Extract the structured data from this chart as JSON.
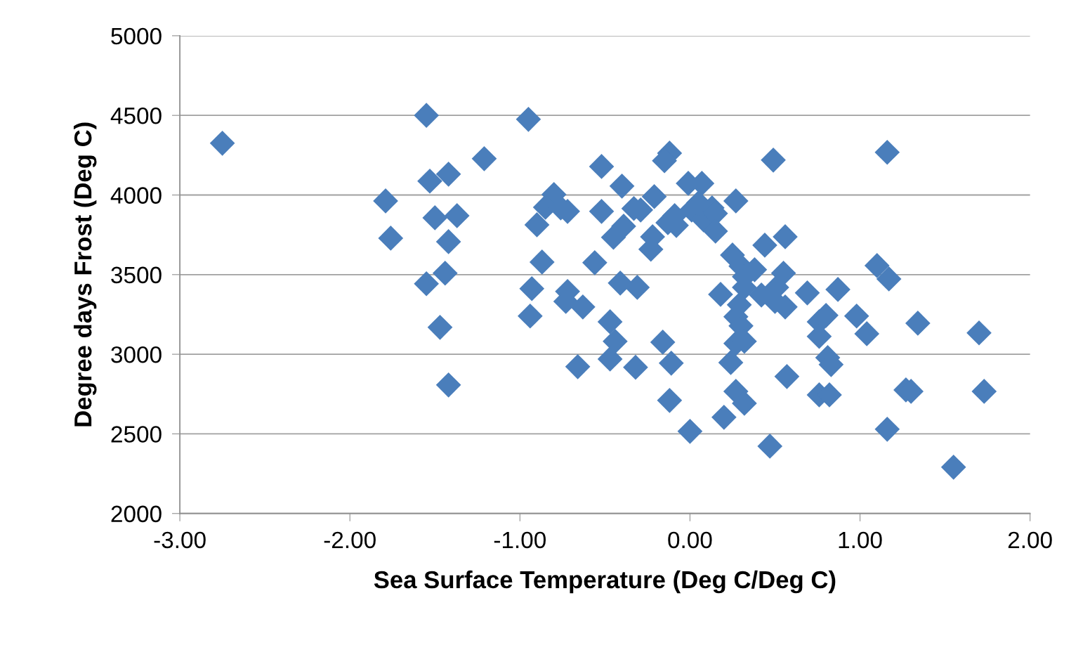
{
  "chart_data": {
    "type": "scatter",
    "xlabel": "Sea Surface Temperature (Deg C/Deg C)",
    "ylabel": "Degree days Frost (Deg C)",
    "xlim": [
      -3,
      2
    ],
    "ylim": [
      2000,
      5000
    ],
    "xticks": [
      {
        "value": -3,
        "label": "-3.00"
      },
      {
        "value": -2,
        "label": "-2.00"
      },
      {
        "value": -1,
        "label": "-1.00"
      },
      {
        "value": 0,
        "label": "0.00"
      },
      {
        "value": 1,
        "label": "1.00"
      },
      {
        "value": 2,
        "label": "2.00"
      }
    ],
    "yticks": [
      2000,
      2500,
      3000,
      3500,
      4000,
      4500,
      5000
    ],
    "grid": "y",
    "marker": "diamond",
    "legend": false,
    "series": [
      {
        "color": "#4a7ebb",
        "x": [
          -2.75,
          -1.55,
          -0.95,
          -1.21,
          -1.53,
          -1.42,
          -1.79,
          -1.76,
          -1.5,
          -1.37,
          -1.42,
          -1.44,
          -1.55,
          -1.47,
          -1.42,
          -0.93,
          -0.94,
          -0.9,
          -0.87,
          -0.8,
          -0.85,
          -0.76,
          -0.72,
          -0.72,
          -0.73,
          -0.63,
          -0.66,
          -0.52,
          -0.4,
          -0.52,
          -0.45,
          -0.39,
          -0.56,
          -0.41,
          -0.47,
          -0.44,
          -0.47,
          -0.32,
          -0.31,
          -0.33,
          -0.29,
          -0.21,
          -0.22,
          -0.23,
          -0.12,
          -0.15,
          -0.16,
          -0.11,
          -0.12,
          0.0,
          -0.01,
          0.07,
          -0.13,
          -0.08,
          -0.09,
          0.01,
          0.08,
          0.13,
          0.15,
          0.15,
          0.05,
          0.27,
          0.18,
          0.25,
          0.3,
          0.32,
          0.38,
          0.32,
          0.27,
          0.3,
          0.27,
          0.32,
          0.24,
          0.27,
          0.32,
          0.2,
          0.42,
          0.44,
          0.56,
          0.49,
          0.55,
          0.51,
          0.5,
          0.56,
          0.57,
          0.47,
          0.69,
          0.87,
          0.76,
          0.8,
          0.76,
          0.81,
          0.83,
          0.76,
          0.82,
          0.98,
          1.04,
          1.1,
          1.17,
          1.16,
          1.16,
          1.27,
          1.3,
          1.34,
          1.55,
          1.7,
          1.73,
          0.29
        ],
        "values": [
          4325,
          4500,
          4475,
          4228,
          4087,
          4131,
          3963,
          3729,
          3857,
          3870,
          3707,
          3509,
          3443,
          3169,
          2807,
          3412,
          3240,
          3813,
          3579,
          4003,
          3923,
          3919,
          3897,
          3394,
          3332,
          3297,
          2922,
          4179,
          4056,
          3897,
          3734,
          3804,
          3575,
          3447,
          3204,
          3081,
          2970,
          2918,
          3420,
          3915,
          3906,
          3990,
          3738,
          3659,
          4263,
          4215,
          3076,
          2944,
          2710,
          2516,
          4073,
          4073,
          3826,
          3809,
          3870,
          3906,
          3844,
          3919,
          3884,
          3773,
          3950,
          3963,
          3376,
          3623,
          3553,
          3487,
          3531,
          3420,
          3235,
          3178,
          3068,
          3081,
          2948,
          2767,
          2692,
          2604,
          3372,
          3685,
          3738,
          4219,
          3509,
          3420,
          3332,
          3297,
          2860,
          2423,
          3385,
          3407,
          3204,
          3244,
          3112,
          2979,
          2935,
          2745,
          2745,
          3240,
          3129,
          3557,
          3473,
          4268,
          2529,
          2776,
          2767,
          3195,
          2291,
          3134,
          2767,
          3310
        ]
      }
    ]
  }
}
